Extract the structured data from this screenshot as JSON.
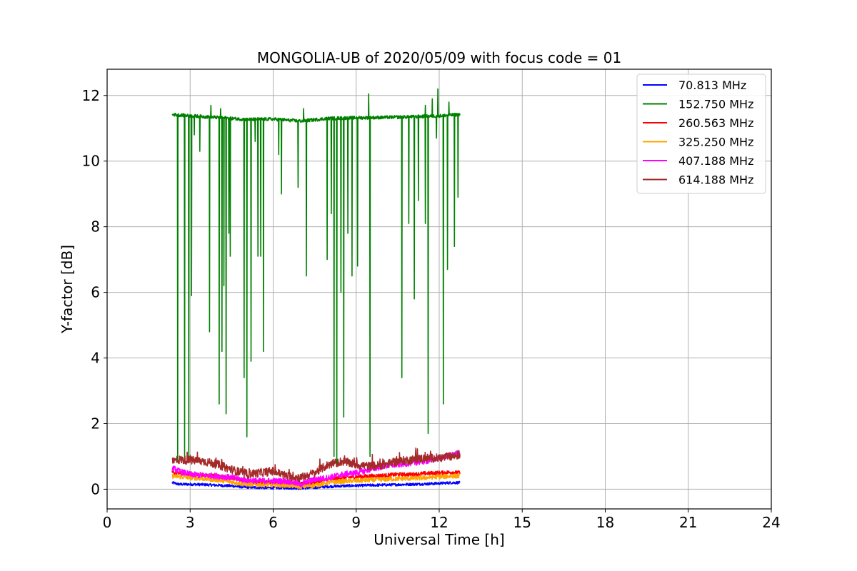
{
  "chart_data": {
    "type": "line",
    "title": "MONGOLIA-UB of 2020/05/09 with focus code = 01",
    "xlabel": "Universal Time [h]",
    "ylabel": "Y-factor [dB]",
    "xlim": [
      0,
      24
    ],
    "ylim": [
      -0.6,
      12.8
    ],
    "xticks": [
      0,
      3,
      6,
      9,
      12,
      15,
      18,
      21,
      24
    ],
    "xtick_labels": [
      "0",
      "3",
      "6",
      "9",
      "12",
      "15",
      "18",
      "21",
      "24"
    ],
    "yticks": [
      0,
      2,
      4,
      6,
      8,
      10,
      12
    ],
    "ytick_labels": [
      "0",
      "2",
      "4",
      "6",
      "8",
      "10",
      "12"
    ],
    "grid": true,
    "legend_position": "top-right",
    "series": [
      {
        "name": "70.813 MHz",
        "legend_label": " 70.813 MHz",
        "color": "#0000ff",
        "x": [
          2.35,
          2.6,
          3.0,
          3.5,
          4.0,
          4.5,
          5.0,
          5.5,
          6.0,
          6.5,
          7.0,
          7.5,
          8.0,
          8.5,
          9.0,
          9.5,
          10.0,
          10.5,
          11.0,
          11.5,
          12.0,
          12.5,
          12.75
        ],
        "y": [
          0.2,
          0.15,
          0.15,
          0.14,
          0.12,
          0.1,
          0.06,
          0.05,
          0.04,
          0.04,
          0.03,
          0.05,
          0.08,
          0.1,
          0.11,
          0.12,
          0.13,
          0.14,
          0.15,
          0.16,
          0.18,
          0.2,
          0.2
        ]
      },
      {
        "name": "152.750 MHz",
        "legend_label": "152.750 MHz",
        "color": "#008000",
        "x": [
          2.35,
          3.0,
          4.0,
          5.0,
          6.0,
          7.0,
          8.0,
          9.0,
          10.0,
          11.0,
          12.0,
          12.75
        ],
        "y": [
          11.42,
          11.38,
          11.33,
          11.27,
          11.28,
          11.22,
          11.3,
          11.32,
          11.33,
          11.35,
          11.38,
          11.42
        ],
        "dips": [
          {
            "x": 2.55,
            "y": 0.9
          },
          {
            "x": 2.8,
            "y": 1.0
          },
          {
            "x": 2.95,
            "y": 1.0
          },
          {
            "x": 3.05,
            "y": 5.9
          },
          {
            "x": 3.15,
            "y": 10.8
          },
          {
            "x": 3.35,
            "y": 10.3
          },
          {
            "x": 3.7,
            "y": 4.8
          },
          {
            "x": 4.05,
            "y": 2.6
          },
          {
            "x": 4.15,
            "y": 4.2
          },
          {
            "x": 4.22,
            "y": 6.2
          },
          {
            "x": 4.3,
            "y": 2.3
          },
          {
            "x": 4.4,
            "y": 7.8
          },
          {
            "x": 4.45,
            "y": 7.1
          },
          {
            "x": 4.95,
            "y": 3.4
          },
          {
            "x": 5.05,
            "y": 1.6
          },
          {
            "x": 5.2,
            "y": 3.9
          },
          {
            "x": 5.35,
            "y": 10.6
          },
          {
            "x": 5.45,
            "y": 7.1
          },
          {
            "x": 5.55,
            "y": 7.1
          },
          {
            "x": 5.65,
            "y": 4.2
          },
          {
            "x": 6.2,
            "y": 10.2
          },
          {
            "x": 6.3,
            "y": 9.0
          },
          {
            "x": 6.9,
            "y": 9.2
          },
          {
            "x": 7.2,
            "y": 6.5
          },
          {
            "x": 7.95,
            "y": 7.0
          },
          {
            "x": 8.1,
            "y": 8.4
          },
          {
            "x": 8.2,
            "y": 1.0
          },
          {
            "x": 8.3,
            "y": 0.8
          },
          {
            "x": 8.45,
            "y": 6.0
          },
          {
            "x": 8.55,
            "y": 2.2
          },
          {
            "x": 8.7,
            "y": 7.8
          },
          {
            "x": 8.85,
            "y": 6.5
          },
          {
            "x": 9.05,
            "y": 6.8
          },
          {
            "x": 9.5,
            "y": 1.0
          },
          {
            "x": 10.65,
            "y": 3.4
          },
          {
            "x": 10.9,
            "y": 8.1
          },
          {
            "x": 11.1,
            "y": 5.8
          },
          {
            "x": 11.25,
            "y": 8.8
          },
          {
            "x": 11.5,
            "y": 8.1
          },
          {
            "x": 11.6,
            "y": 1.7
          },
          {
            "x": 11.9,
            "y": 10.7
          },
          {
            "x": 12.15,
            "y": 2.6
          },
          {
            "x": 12.3,
            "y": 6.7
          },
          {
            "x": 12.55,
            "y": 7.4
          },
          {
            "x": 12.68,
            "y": 8.9
          }
        ],
        "spikes": [
          {
            "x": 3.75,
            "y": 11.7
          },
          {
            "x": 4.1,
            "y": 11.6
          },
          {
            "x": 7.1,
            "y": 11.6
          },
          {
            "x": 9.45,
            "y": 12.05
          },
          {
            "x": 11.5,
            "y": 11.7
          },
          {
            "x": 11.75,
            "y": 11.9
          },
          {
            "x": 11.95,
            "y": 12.2
          },
          {
            "x": 12.35,
            "y": 11.8
          }
        ]
      },
      {
        "name": "260.563 MHz",
        "legend_label": "260.563 MHz",
        "color": "#ff0000",
        "x": [
          2.35,
          2.6,
          3.0,
          3.5,
          4.0,
          4.5,
          5.0,
          5.5,
          6.0,
          6.5,
          7.0,
          7.5,
          8.0,
          8.5,
          9.0,
          9.5,
          10.0,
          10.5,
          11.0,
          11.5,
          12.0,
          12.5,
          12.75
        ],
        "y": [
          0.5,
          0.48,
          0.45,
          0.43,
          0.4,
          0.35,
          0.25,
          0.22,
          0.2,
          0.2,
          0.15,
          0.2,
          0.3,
          0.35,
          0.38,
          0.4,
          0.42,
          0.45,
          0.45,
          0.48,
          0.5,
          0.52,
          0.5
        ]
      },
      {
        "name": "325.250 MHz",
        "legend_label": "325.250 MHz",
        "color": "#ffa500",
        "x": [
          2.35,
          2.6,
          3.0,
          3.5,
          4.0,
          4.5,
          5.0,
          5.5,
          6.0,
          6.5,
          7.0,
          7.5,
          8.0,
          8.5,
          9.0,
          9.5,
          10.0,
          10.5,
          11.0,
          11.5,
          12.0,
          12.5,
          12.75
        ],
        "y": [
          0.4,
          0.38,
          0.35,
          0.32,
          0.28,
          0.22,
          0.15,
          0.14,
          0.12,
          0.12,
          0.08,
          0.12,
          0.2,
          0.24,
          0.26,
          0.28,
          0.3,
          0.32,
          0.33,
          0.35,
          0.38,
          0.4,
          0.4
        ]
      },
      {
        "name": "407.188 MHz",
        "legend_label": "407.188 MHz",
        "color": "#ff00ff",
        "x": [
          2.35,
          2.6,
          3.0,
          3.5,
          4.0,
          4.5,
          5.0,
          5.5,
          6.0,
          6.5,
          7.0,
          7.5,
          8.0,
          8.5,
          9.0,
          9.5,
          10.0,
          10.5,
          11.0,
          11.5,
          12.0,
          12.5,
          12.75
        ],
        "y": [
          0.65,
          0.55,
          0.45,
          0.42,
          0.4,
          0.35,
          0.28,
          0.25,
          0.25,
          0.25,
          0.15,
          0.3,
          0.35,
          0.45,
          0.5,
          0.6,
          0.7,
          0.75,
          0.8,
          0.85,
          0.95,
          1.05,
          1.1
        ]
      },
      {
        "name": "614.188 MHz",
        "legend_label": "614.188 MHz",
        "color": "#a52a2a",
        "x": [
          2.35,
          2.6,
          3.0,
          3.5,
          4.0,
          4.5,
          5.0,
          5.5,
          6.0,
          6.5,
          7.0,
          7.5,
          8.0,
          8.5,
          9.0,
          9.5,
          10.0,
          10.5,
          11.0,
          11.5,
          12.0,
          12.5,
          12.75
        ],
        "y": [
          0.85,
          0.9,
          0.88,
          0.85,
          0.75,
          0.6,
          0.45,
          0.5,
          0.55,
          0.4,
          0.35,
          0.5,
          0.75,
          0.85,
          0.75,
          0.7,
          0.75,
          0.85,
          0.9,
          0.95,
          0.95,
          1.0,
          1.05
        ]
      }
    ]
  }
}
